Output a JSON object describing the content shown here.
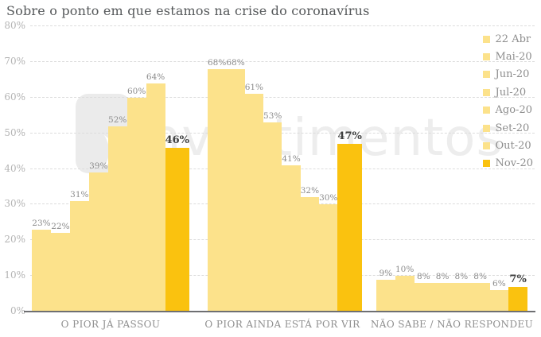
{
  "watermark": {
    "text": "investimentos"
  },
  "colors": {
    "bar_regular": "#fce28b",
    "bar_highlight": "#fac20f",
    "gridline": "#dcdcdc",
    "axis_line": "#6e6f72",
    "tick_label": "#b4b4b4",
    "value_label": "#8c8c8c",
    "value_label_highlight": "#3f4040",
    "group_label": "#8f8f8f",
    "legend_label": "#8d8d8d",
    "title": "#55585a",
    "watermark": "#ededed"
  },
  "chart_data": {
    "type": "bar",
    "title": "Sobre o ponto em que estamos na crise do coronavírus",
    "categories": [
      "O PIOR JÁ PASSOU",
      "O PIOR AINDA ESTÁ POR VIR",
      "NÃO SABE / NÃO RESPONDEU"
    ],
    "series": [
      {
        "name": "22 Abr",
        "values": [
          23,
          68,
          9
        ],
        "highlight": false
      },
      {
        "name": "Mai-20",
        "values": [
          22,
          68,
          10
        ],
        "highlight": false
      },
      {
        "name": "Jun-20",
        "values": [
          31,
          61,
          8
        ],
        "highlight": false
      },
      {
        "name": "Jul-20",
        "values": [
          39,
          53,
          8
        ],
        "highlight": false
      },
      {
        "name": "Ago-20",
        "values": [
          52,
          41,
          8
        ],
        "highlight": false
      },
      {
        "name": "Set-20",
        "values": [
          60,
          32,
          8
        ],
        "highlight": false
      },
      {
        "name": "Out-20",
        "values": [
          64,
          30,
          6
        ],
        "highlight": false
      },
      {
        "name": "Nov-20",
        "values": [
          46,
          47,
          7
        ],
        "highlight": true
      }
    ],
    "value_suffix": "%",
    "ylabel": "",
    "xlabel": "",
    "ylim": [
      0,
      80
    ],
    "ytick_step": 10,
    "ytick_suffix": "%",
    "grid": "dashed-horizontal",
    "legend_position": "top-right"
  }
}
